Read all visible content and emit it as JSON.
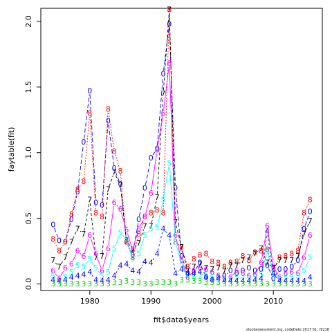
{
  "footnote": "stockassessment.org, codeDate 2017 01, r9218",
  "chart_data": {
    "type": "line",
    "title": "",
    "xlabel": "fit$data$years",
    "ylabel": "faytable(fit)",
    "xlim": [
      1972,
      2018
    ],
    "ylim": [
      -0.05,
      2.1
    ],
    "xticks": [
      1980,
      1990,
      2000,
      2010
    ],
    "yticks": [
      0.0,
      0.5,
      1.0,
      1.5,
      2.0
    ],
    "ytick_labels": [
      "0.0",
      "0.5",
      "1.0",
      "1.5",
      "2.0"
    ],
    "grid": false,
    "legend": "none",
    "x": [
      1974,
      1975,
      1976,
      1977,
      1978,
      1979,
      1980,
      1981,
      1982,
      1983,
      1984,
      1985,
      1986,
      1987,
      1988,
      1989,
      1990,
      1991,
      1992,
      1993,
      1994,
      1995,
      1996,
      1997,
      1998,
      1999,
      2000,
      2001,
      2002,
      2003,
      2004,
      2005,
      2006,
      2007,
      2008,
      2009,
      2010,
      2011,
      2012,
      2013,
      2014,
      2015,
      2016
    ],
    "series": [
      {
        "marker": "0",
        "color": "#0000ff",
        "dash": "6,3",
        "values": [
          0.45,
          0.33,
          0.32,
          0.49,
          0.7,
          1.08,
          1.47,
          0.62,
          0.6,
          1.24,
          0.88,
          0.76,
          0.32,
          0.22,
          0.49,
          0.73,
          0.96,
          1.03,
          1.6,
          1.98,
          0.73,
          0.21,
          0.08,
          0.09,
          0.16,
          0.05,
          0.03,
          0.05,
          0.06,
          0.1,
          0.08,
          0.1,
          0.12,
          0.1,
          0.11,
          0.14,
          0.04,
          0.11,
          0.11,
          0.13,
          0.18,
          0.42,
          0.55
        ]
      },
      {
        "marker": "8",
        "color": "#ff0000",
        "dash": "2,2",
        "values": [
          0.34,
          0.25,
          0.32,
          0.53,
          0.72,
          0.78,
          1.3,
          0.54,
          0.51,
          1.33,
          1.01,
          0.86,
          0.32,
          0.2,
          0.38,
          0.51,
          0.54,
          0.56,
          0.54,
          2.09,
          0.32,
          0.28,
          0.13,
          0.19,
          0.22,
          0.23,
          0.17,
          0.16,
          0.13,
          0.16,
          0.17,
          0.21,
          0.18,
          0.24,
          0.25,
          0.26,
          0.11,
          0.2,
          0.21,
          0.23,
          0.25,
          0.54,
          0.64
        ]
      },
      {
        "marker": "7",
        "color": "#000000",
        "dash": "4,3",
        "values": [
          0.18,
          0.13,
          0.2,
          0.32,
          0.42,
          0.38,
          0.64,
          0.2,
          0.21,
          0.72,
          0.85,
          0.75,
          0.33,
          0.26,
          0.31,
          0.44,
          0.44,
          0.66,
          1.45,
          2.09,
          0.47,
          0.28,
          0.1,
          0.13,
          0.15,
          0.12,
          0.11,
          0.12,
          0.1,
          0.14,
          0.14,
          0.18,
          0.2,
          0.23,
          0.27,
          0.16,
          0.12,
          0.18,
          0.18,
          0.18,
          0.21,
          0.38,
          0.48
        ]
      },
      {
        "marker": "6",
        "color": "#ff00ff",
        "dash": "",
        "values": [
          0.1,
          0.04,
          0.12,
          0.15,
          0.25,
          0.21,
          0.37,
          0.23,
          0.1,
          0.27,
          0.62,
          0.57,
          0.41,
          0.26,
          0.42,
          0.51,
          0.69,
          1.02,
          1.3,
          1.68,
          0.37,
          0.18,
          0.05,
          0.1,
          0.12,
          0.11,
          0.09,
          0.06,
          0.04,
          0.05,
          0.1,
          0.08,
          0.06,
          0.07,
          0.16,
          0.44,
          0.13,
          0.05,
          0.08,
          0.09,
          0.08,
          0.2,
          0.37
        ]
      },
      {
        "marker": "5",
        "color": "#00ffff",
        "dash": "",
        "values": [
          0.06,
          0.03,
          0.05,
          0.09,
          0.14,
          0.13,
          0.19,
          0.12,
          0.06,
          0.09,
          0.27,
          0.39,
          0.34,
          0.19,
          0.23,
          0.37,
          0.42,
          0.43,
          0.64,
          0.92,
          0.32,
          0.15,
          0.05,
          0.05,
          0.07,
          0.07,
          0.05,
          0.04,
          0.02,
          0.04,
          0.05,
          0.06,
          0.04,
          0.05,
          0.07,
          0.25,
          0.07,
          0.04,
          0.05,
          0.05,
          0.06,
          0.1,
          0.2
        ]
      },
      {
        "marker": "4",
        "color": "#0000ff",
        "dash": "3,3",
        "values": [
          0.03,
          0.02,
          0.03,
          0.05,
          0.06,
          0.07,
          0.09,
          0.03,
          0.02,
          0.03,
          0.06,
          0.14,
          0.15,
          0.1,
          0.09,
          0.17,
          0.16,
          0.23,
          0.42,
          0.37,
          0.08,
          0.11,
          0.08,
          0.08,
          0.09,
          0.05,
          0.03,
          0.04,
          0.02,
          0.02,
          0.02,
          0.02,
          0.02,
          0.03,
          0.04,
          0.4,
          0.08,
          0.02,
          0.02,
          0.02,
          0.02,
          0.02,
          0.05
        ]
      },
      {
        "marker": "3",
        "color": "#00cd00",
        "dash": "",
        "values": [
          0.0,
          0.0,
          0.0,
          0.0,
          0.0,
          0.0,
          0.0,
          0.0,
          0.0,
          0.0,
          0.01,
          0.01,
          0.02,
          0.01,
          0.01,
          0.0,
          0.0,
          0.01,
          0.01,
          0.01,
          0.0,
          0.03,
          0.03,
          0.02,
          0.02,
          0.01,
          0.01,
          0.01,
          0.0,
          0.0,
          0.0,
          0.0,
          0.0,
          0.0,
          0.0,
          0.0,
          0.0,
          0.0,
          0.0,
          0.0,
          0.0,
          0.0,
          0.0
        ]
      }
    ]
  }
}
